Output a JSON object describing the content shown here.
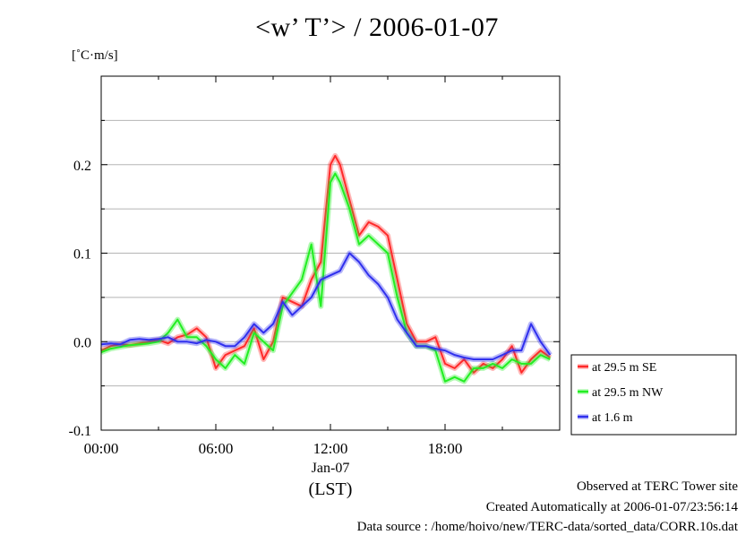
{
  "header": {
    "title": "<w’ T’> / 2006-01-07",
    "unit": "[˚C·m/s]"
  },
  "footer": {
    "line1": "Observed at TERC Tower site",
    "line2": "Created Automatically at 2006-01-07/23:56:14",
    "line3": "Data source : /home/hoivo/new/TERC-data/sorted_data/CORR.10s.dat"
  },
  "chart_data": {
    "type": "line",
    "title": "<w’ T’> / 2006-01-07",
    "ylabel": "[˚C·m/s]",
    "xlabel": "(LST)",
    "x_date_label": "Jan-07",
    "xlim": [
      "2006-01-07 00:00",
      "2006-01-08 00:00"
    ],
    "ylim": [
      -0.1,
      0.3
    ],
    "x_ticks": [
      "00:00",
      "06:00",
      "12:00",
      "18:00"
    ],
    "y_ticks": [
      "0.2",
      "0.1",
      "0.0",
      "-0.1"
    ],
    "grid": true,
    "legend_placement": "right",
    "series": [
      {
        "name": "at 29.5 m SE",
        "color": "#ff2a2a",
        "points": [
          [
            "2006-01-07 00:00",
            -0.01
          ],
          [
            "2006-01-07 00:30",
            -0.005
          ],
          [
            "2006-01-07 01:00",
            -0.003
          ],
          [
            "2006-01-07 01:30",
            -0.004
          ],
          [
            "2006-01-07 02:00",
            -0.002
          ],
          [
            "2006-01-07 02:30",
            0.0
          ],
          [
            "2006-01-07 03:00",
            0.002
          ],
          [
            "2006-01-07 03:30",
            -0.002
          ],
          [
            "2006-01-07 04:00",
            0.005
          ],
          [
            "2006-01-07 04:30",
            0.008
          ],
          [
            "2006-01-07 05:00",
            0.015
          ],
          [
            "2006-01-07 05:30",
            0.005
          ],
          [
            "2006-01-07 06:00",
            -0.03
          ],
          [
            "2006-01-07 06:30",
            -0.015
          ],
          [
            "2006-01-07 07:00",
            -0.01
          ],
          [
            "2006-01-07 07:30",
            -0.005
          ],
          [
            "2006-01-07 08:00",
            0.015
          ],
          [
            "2006-01-07 08:30",
            -0.02
          ],
          [
            "2006-01-07 09:00",
            0.0
          ],
          [
            "2006-01-07 09:30",
            0.05
          ],
          [
            "2006-01-07 10:00",
            0.045
          ],
          [
            "2006-01-07 10:30",
            0.04
          ],
          [
            "2006-01-07 11:00",
            0.07
          ],
          [
            "2006-01-07 11:30",
            0.09
          ],
          [
            "2006-01-07 12:00",
            0.2
          ],
          [
            "2006-01-07 12:15",
            0.21
          ],
          [
            "2006-01-07 12:30",
            0.2
          ],
          [
            "2006-01-07 13:00",
            0.16
          ],
          [
            "2006-01-07 13:30",
            0.12
          ],
          [
            "2006-01-07 14:00",
            0.135
          ],
          [
            "2006-01-07 14:30",
            0.13
          ],
          [
            "2006-01-07 15:00",
            0.12
          ],
          [
            "2006-01-07 15:30",
            0.07
          ],
          [
            "2006-01-07 16:00",
            0.02
          ],
          [
            "2006-01-07 16:30",
            0.0
          ],
          [
            "2006-01-07 17:00",
            0.0
          ],
          [
            "2006-01-07 17:30",
            0.005
          ],
          [
            "2006-01-07 18:00",
            -0.025
          ],
          [
            "2006-01-07 18:30",
            -0.03
          ],
          [
            "2006-01-07 19:00",
            -0.02
          ],
          [
            "2006-01-07 19:30",
            -0.035
          ],
          [
            "2006-01-07 20:00",
            -0.025
          ],
          [
            "2006-01-07 20:30",
            -0.03
          ],
          [
            "2006-01-07 21:00",
            -0.02
          ],
          [
            "2006-01-07 21:30",
            -0.005
          ],
          [
            "2006-01-07 22:00",
            -0.035
          ],
          [
            "2006-01-07 22:30",
            -0.02
          ],
          [
            "2006-01-07 23:00",
            -0.01
          ],
          [
            "2006-01-07 23:30",
            -0.018
          ]
        ]
      },
      {
        "name": "at 29.5 m NW",
        "color": "#22ee22",
        "points": [
          [
            "2006-01-07 00:00",
            -0.012
          ],
          [
            "2006-01-07 00:30",
            -0.008
          ],
          [
            "2006-01-07 01:00",
            -0.006
          ],
          [
            "2006-01-07 01:30",
            -0.004
          ],
          [
            "2006-01-07 02:00",
            -0.003
          ],
          [
            "2006-01-07 02:30",
            -0.002
          ],
          [
            "2006-01-07 03:00",
            0.0
          ],
          [
            "2006-01-07 03:30",
            0.01
          ],
          [
            "2006-01-07 04:00",
            0.025
          ],
          [
            "2006-01-07 04:30",
            0.005
          ],
          [
            "2006-01-07 05:00",
            0.005
          ],
          [
            "2006-01-07 05:30",
            -0.005
          ],
          [
            "2006-01-07 06:00",
            -0.02
          ],
          [
            "2006-01-07 06:30",
            -0.03
          ],
          [
            "2006-01-07 07:00",
            -0.015
          ],
          [
            "2006-01-07 07:30",
            -0.025
          ],
          [
            "2006-01-07 08:00",
            0.01
          ],
          [
            "2006-01-07 08:30",
            0.0
          ],
          [
            "2006-01-07 09:00",
            -0.01
          ],
          [
            "2006-01-07 09:30",
            0.04
          ],
          [
            "2006-01-07 10:00",
            0.055
          ],
          [
            "2006-01-07 10:30",
            0.07
          ],
          [
            "2006-01-07 11:00",
            0.11
          ],
          [
            "2006-01-07 11:30",
            0.04
          ],
          [
            "2006-01-07 12:00",
            0.18
          ],
          [
            "2006-01-07 12:15",
            0.19
          ],
          [
            "2006-01-07 12:30",
            0.18
          ],
          [
            "2006-01-07 13:00",
            0.15
          ],
          [
            "2006-01-07 13:30",
            0.11
          ],
          [
            "2006-01-07 14:00",
            0.12
          ],
          [
            "2006-01-07 14:30",
            0.11
          ],
          [
            "2006-01-07 15:00",
            0.1
          ],
          [
            "2006-01-07 15:30",
            0.05
          ],
          [
            "2006-01-07 16:00",
            0.01
          ],
          [
            "2006-01-07 16:30",
            -0.005
          ],
          [
            "2006-01-07 17:00",
            -0.005
          ],
          [
            "2006-01-07 17:30",
            -0.01
          ],
          [
            "2006-01-07 18:00",
            -0.045
          ],
          [
            "2006-01-07 18:30",
            -0.04
          ],
          [
            "2006-01-07 19:00",
            -0.045
          ],
          [
            "2006-01-07 19:30",
            -0.03
          ],
          [
            "2006-01-07 20:00",
            -0.03
          ],
          [
            "2006-01-07 20:30",
            -0.025
          ],
          [
            "2006-01-07 21:00",
            -0.03
          ],
          [
            "2006-01-07 21:30",
            -0.02
          ],
          [
            "2006-01-07 22:00",
            -0.025
          ],
          [
            "2006-01-07 22:30",
            -0.025
          ],
          [
            "2006-01-07 23:00",
            -0.015
          ],
          [
            "2006-01-07 23:30",
            -0.02
          ]
        ]
      },
      {
        "name": "at 1.6 m",
        "color": "#3030ee",
        "points": [
          [
            "2006-01-07 00:00",
            -0.003
          ],
          [
            "2006-01-07 00:30",
            -0.002
          ],
          [
            "2006-01-07 01:00",
            -0.003
          ],
          [
            "2006-01-07 01:30",
            0.002
          ],
          [
            "2006-01-07 02:00",
            0.003
          ],
          [
            "2006-01-07 02:30",
            0.002
          ],
          [
            "2006-01-07 03:00",
            0.003
          ],
          [
            "2006-01-07 03:30",
            0.005
          ],
          [
            "2006-01-07 04:00",
            0.0
          ],
          [
            "2006-01-07 04:30",
            0.0
          ],
          [
            "2006-01-07 05:00",
            -0.002
          ],
          [
            "2006-01-07 05:30",
            0.002
          ],
          [
            "2006-01-07 06:00",
            0.0
          ],
          [
            "2006-01-07 06:30",
            -0.005
          ],
          [
            "2006-01-07 07:00",
            -0.005
          ],
          [
            "2006-01-07 07:30",
            0.005
          ],
          [
            "2006-01-07 08:00",
            0.02
          ],
          [
            "2006-01-07 08:30",
            0.01
          ],
          [
            "2006-01-07 09:00",
            0.02
          ],
          [
            "2006-01-07 09:30",
            0.045
          ],
          [
            "2006-01-07 10:00",
            0.03
          ],
          [
            "2006-01-07 10:30",
            0.04
          ],
          [
            "2006-01-07 11:00",
            0.05
          ],
          [
            "2006-01-07 11:30",
            0.07
          ],
          [
            "2006-01-07 12:00",
            0.075
          ],
          [
            "2006-01-07 12:30",
            0.08
          ],
          [
            "2006-01-07 13:00",
            0.1
          ],
          [
            "2006-01-07 13:30",
            0.09
          ],
          [
            "2006-01-07 14:00",
            0.075
          ],
          [
            "2006-01-07 14:30",
            0.065
          ],
          [
            "2006-01-07 15:00",
            0.05
          ],
          [
            "2006-01-07 15:30",
            0.025
          ],
          [
            "2006-01-07 16:00",
            0.01
          ],
          [
            "2006-01-07 16:30",
            -0.005
          ],
          [
            "2006-01-07 17:00",
            -0.005
          ],
          [
            "2006-01-07 17:30",
            -0.008
          ],
          [
            "2006-01-07 18:00",
            -0.01
          ],
          [
            "2006-01-07 18:30",
            -0.015
          ],
          [
            "2006-01-07 19:00",
            -0.018
          ],
          [
            "2006-01-07 19:30",
            -0.02
          ],
          [
            "2006-01-07 20:00",
            -0.02
          ],
          [
            "2006-01-07 20:30",
            -0.02
          ],
          [
            "2006-01-07 21:00",
            -0.015
          ],
          [
            "2006-01-07 21:30",
            -0.01
          ],
          [
            "2006-01-07 22:00",
            -0.01
          ],
          [
            "2006-01-07 22:30",
            0.02
          ],
          [
            "2006-01-07 23:00",
            0.0
          ],
          [
            "2006-01-07 23:30",
            -0.015
          ]
        ]
      }
    ]
  }
}
